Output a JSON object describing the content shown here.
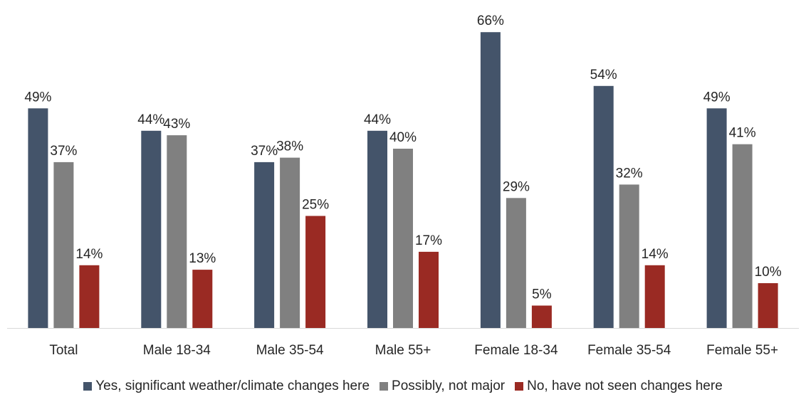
{
  "chart_data": {
    "type": "bar",
    "title": "",
    "xlabel": "",
    "ylabel": "",
    "ylim": [
      0,
      70
    ],
    "grid": false,
    "legend_position": "bottom",
    "value_suffix": "%",
    "categories": [
      "Total",
      "Male 18-34",
      "Male 35-54",
      "Male 55+",
      "Female 18-34",
      "Female 35-54",
      "Female 55+"
    ],
    "series": [
      {
        "name": "Yes, significant weather/climate changes here",
        "color": "#44546a",
        "values": [
          49,
          44,
          37,
          44,
          66,
          54,
          49
        ]
      },
      {
        "name": "Possibly, not major",
        "color": "#808080",
        "values": [
          37,
          43,
          38,
          40,
          29,
          32,
          41
        ]
      },
      {
        "name": "No, have not seen changes here",
        "color": "#9a2a23",
        "values": [
          14,
          13,
          25,
          17,
          5,
          14,
          10
        ]
      }
    ]
  }
}
